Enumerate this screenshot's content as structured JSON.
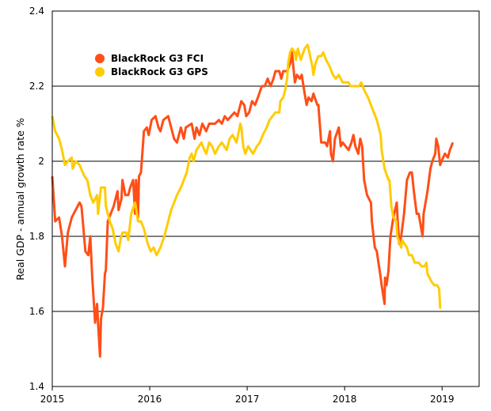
{
  "chart_data": {
    "type": "line",
    "title": "",
    "xlabel": "",
    "ylabel": "Real GDP - annual growth rate %",
    "xlim": [
      2015,
      2019.38
    ],
    "ylim": [
      1.4,
      2.4
    ],
    "x_ticks": [
      "2015",
      "2016",
      "2017",
      "2018",
      "2019"
    ],
    "y_ticks": [
      "1.4",
      "1.6",
      "1.8",
      "2",
      "2.2",
      "2.4"
    ],
    "grid": "horizontal",
    "legend_position": "top-left",
    "series": [
      {
        "name": "BlackRock G3 FCI",
        "color": "#FF4E17",
        "points": [
          [
            2015.0,
            1.96
          ],
          [
            2015.03,
            1.84
          ],
          [
            2015.07,
            1.85
          ],
          [
            2015.1,
            1.8
          ],
          [
            2015.13,
            1.72
          ],
          [
            2015.16,
            1.81
          ],
          [
            2015.2,
            1.85
          ],
          [
            2015.24,
            1.87
          ],
          [
            2015.28,
            1.89
          ],
          [
            2015.3,
            1.88
          ],
          [
            2015.32,
            1.82
          ],
          [
            2015.34,
            1.76
          ],
          [
            2015.37,
            1.75
          ],
          [
            2015.39,
            1.8
          ],
          [
            2015.41,
            1.69
          ],
          [
            2015.42,
            1.65
          ],
          [
            2015.44,
            1.57
          ],
          [
            2015.46,
            1.62
          ],
          [
            2015.47,
            1.57
          ],
          [
            2015.49,
            1.48
          ],
          [
            2015.5,
            1.58
          ],
          [
            2015.52,
            1.61
          ],
          [
            2015.54,
            1.7
          ],
          [
            2015.55,
            1.71
          ],
          [
            2015.57,
            1.84
          ],
          [
            2015.6,
            1.86
          ],
          [
            2015.63,
            1.88
          ],
          [
            2015.67,
            1.92
          ],
          [
            2015.68,
            1.87
          ],
          [
            2015.71,
            1.9
          ],
          [
            2015.72,
            1.95
          ],
          [
            2015.75,
            1.91
          ],
          [
            2015.78,
            1.91
          ],
          [
            2015.8,
            1.93
          ],
          [
            2015.83,
            1.95
          ],
          [
            2015.85,
            1.86
          ],
          [
            2015.86,
            1.95
          ],
          [
            2015.88,
            1.85
          ],
          [
            2015.89,
            1.96
          ],
          [
            2015.91,
            1.97
          ],
          [
            2015.93,
            2.04
          ],
          [
            2015.94,
            2.08
          ],
          [
            2015.97,
            2.09
          ],
          [
            2015.99,
            2.07
          ],
          [
            2016.02,
            2.11
          ],
          [
            2016.06,
            2.12
          ],
          [
            2016.09,
            2.09
          ],
          [
            2016.11,
            2.08
          ],
          [
            2016.14,
            2.11
          ],
          [
            2016.19,
            2.12
          ],
          [
            2016.22,
            2.09
          ],
          [
            2016.25,
            2.06
          ],
          [
            2016.28,
            2.05
          ],
          [
            2016.32,
            2.09
          ],
          [
            2016.35,
            2.06
          ],
          [
            2016.37,
            2.09
          ],
          [
            2016.43,
            2.1
          ],
          [
            2016.46,
            2.06
          ],
          [
            2016.48,
            2.09
          ],
          [
            2016.51,
            2.07
          ],
          [
            2016.54,
            2.1
          ],
          [
            2016.58,
            2.08
          ],
          [
            2016.61,
            2.1
          ],
          [
            2016.67,
            2.1
          ],
          [
            2016.71,
            2.11
          ],
          [
            2016.74,
            2.1
          ],
          [
            2016.77,
            2.12
          ],
          [
            2016.8,
            2.11
          ],
          [
            2016.87,
            2.13
          ],
          [
            2016.9,
            2.12
          ],
          [
            2016.94,
            2.16
          ],
          [
            2016.97,
            2.15
          ],
          [
            2016.99,
            2.12
          ],
          [
            2017.02,
            2.13
          ],
          [
            2017.05,
            2.16
          ],
          [
            2017.08,
            2.15
          ],
          [
            2017.11,
            2.17
          ],
          [
            2017.15,
            2.2
          ],
          [
            2017.18,
            2.2
          ],
          [
            2017.21,
            2.22
          ],
          [
            2017.24,
            2.2
          ],
          [
            2017.27,
            2.22
          ],
          [
            2017.29,
            2.24
          ],
          [
            2017.33,
            2.24
          ],
          [
            2017.35,
            2.22
          ],
          [
            2017.37,
            2.24
          ],
          [
            2017.41,
            2.24
          ],
          [
            2017.44,
            2.26
          ],
          [
            2017.46,
            2.29
          ],
          [
            2017.47,
            2.26
          ],
          [
            2017.49,
            2.21
          ],
          [
            2017.51,
            2.23
          ],
          [
            2017.54,
            2.22
          ],
          [
            2017.56,
            2.23
          ],
          [
            2017.59,
            2.18
          ],
          [
            2017.61,
            2.15
          ],
          [
            2017.63,
            2.17
          ],
          [
            2017.66,
            2.16
          ],
          [
            2017.68,
            2.18
          ],
          [
            2017.72,
            2.15
          ],
          [
            2017.73,
            2.15
          ],
          [
            2017.76,
            2.05
          ],
          [
            2017.8,
            2.05
          ],
          [
            2017.82,
            2.04
          ],
          [
            2017.85,
            2.08
          ],
          [
            2017.86,
            2.02
          ],
          [
            2017.88,
            2.0
          ],
          [
            2017.9,
            2.06
          ],
          [
            2017.94,
            2.09
          ],
          [
            2017.96,
            2.04
          ],
          [
            2017.98,
            2.05
          ],
          [
            2018.01,
            2.04
          ],
          [
            2018.04,
            2.03
          ],
          [
            2018.07,
            2.05
          ],
          [
            2018.09,
            2.07
          ],
          [
            2018.11,
            2.04
          ],
          [
            2018.14,
            2.02
          ],
          [
            2018.16,
            2.06
          ],
          [
            2018.18,
            2.04
          ],
          [
            2018.2,
            1.95
          ],
          [
            2018.23,
            1.91
          ],
          [
            2018.27,
            1.89
          ],
          [
            2018.28,
            1.84
          ],
          [
            2018.31,
            1.77
          ],
          [
            2018.33,
            1.76
          ],
          [
            2018.37,
            1.69
          ],
          [
            2018.38,
            1.67
          ],
          [
            2018.41,
            1.62
          ],
          [
            2018.415,
            1.69
          ],
          [
            2018.43,
            1.67
          ],
          [
            2018.45,
            1.71
          ],
          [
            2018.47,
            1.8
          ],
          [
            2018.5,
            1.85
          ],
          [
            2018.535,
            1.89
          ],
          [
            2018.545,
            1.84
          ],
          [
            2018.56,
            1.78
          ],
          [
            2018.58,
            1.8
          ],
          [
            2018.61,
            1.86
          ],
          [
            2018.64,
            1.95
          ],
          [
            2018.67,
            1.97
          ],
          [
            2018.69,
            1.97
          ],
          [
            2018.71,
            1.92
          ],
          [
            2018.74,
            1.86
          ],
          [
            2018.76,
            1.86
          ],
          [
            2018.8,
            1.8
          ],
          [
            2018.81,
            1.86
          ],
          [
            2018.85,
            1.92
          ],
          [
            2018.88,
            1.98
          ],
          [
            2018.9,
            2.0
          ],
          [
            2018.93,
            2.02
          ],
          [
            2018.94,
            2.06
          ],
          [
            2018.96,
            2.04
          ],
          [
            2018.98,
            1.99
          ],
          [
            2019.01,
            2.01
          ],
          [
            2019.03,
            2.02
          ],
          [
            2019.06,
            2.01
          ],
          [
            2019.08,
            2.03
          ],
          [
            2019.11,
            2.05
          ]
        ]
      },
      {
        "name": "BlackRock G3 GPS",
        "color": "#FFCC00",
        "points": [
          [
            2015.0,
            2.12
          ],
          [
            2015.03,
            2.08
          ],
          [
            2015.07,
            2.06
          ],
          [
            2015.1,
            2.03
          ],
          [
            2015.13,
            1.99
          ],
          [
            2015.16,
            2.0
          ],
          [
            2015.2,
            2.01
          ],
          [
            2015.21,
            1.98
          ],
          [
            2015.24,
            2.0
          ],
          [
            2015.28,
            1.99
          ],
          [
            2015.33,
            1.96
          ],
          [
            2015.36,
            1.95
          ],
          [
            2015.39,
            1.91
          ],
          [
            2015.42,
            1.89
          ],
          [
            2015.46,
            1.91
          ],
          [
            2015.47,
            1.86
          ],
          [
            2015.5,
            1.93
          ],
          [
            2015.54,
            1.93
          ],
          [
            2015.55,
            1.88
          ],
          [
            2015.59,
            1.84
          ],
          [
            2015.62,
            1.82
          ],
          [
            2015.65,
            1.78
          ],
          [
            2015.68,
            1.76
          ],
          [
            2015.7,
            1.79
          ],
          [
            2015.72,
            1.81
          ],
          [
            2015.76,
            1.81
          ],
          [
            2015.78,
            1.79
          ],
          [
            2015.81,
            1.86
          ],
          [
            2015.85,
            1.89
          ],
          [
            2015.88,
            1.84
          ],
          [
            2015.91,
            1.84
          ],
          [
            2015.94,
            1.82
          ],
          [
            2015.98,
            1.78
          ],
          [
            2016.01,
            1.76
          ],
          [
            2016.04,
            1.77
          ],
          [
            2016.07,
            1.75
          ],
          [
            2016.11,
            1.77
          ],
          [
            2016.15,
            1.8
          ],
          [
            2016.19,
            1.84
          ],
          [
            2016.22,
            1.87
          ],
          [
            2016.25,
            1.89
          ],
          [
            2016.28,
            1.91
          ],
          [
            2016.32,
            1.93
          ],
          [
            2016.35,
            1.95
          ],
          [
            2016.38,
            1.97
          ],
          [
            2016.41,
            2.01
          ],
          [
            2016.43,
            2.02
          ],
          [
            2016.45,
            2.0
          ],
          [
            2016.48,
            2.03
          ],
          [
            2016.53,
            2.05
          ],
          [
            2016.56,
            2.03
          ],
          [
            2016.58,
            2.02
          ],
          [
            2016.61,
            2.05
          ],
          [
            2016.64,
            2.04
          ],
          [
            2016.67,
            2.02
          ],
          [
            2016.71,
            2.04
          ],
          [
            2016.74,
            2.05
          ],
          [
            2016.79,
            2.03
          ],
          [
            2016.82,
            2.06
          ],
          [
            2016.85,
            2.07
          ],
          [
            2016.89,
            2.05
          ],
          [
            2016.93,
            2.1
          ],
          [
            2016.94,
            2.09
          ],
          [
            2016.96,
            2.04
          ],
          [
            2016.98,
            2.02
          ],
          [
            2017.01,
            2.04
          ],
          [
            2017.06,
            2.02
          ],
          [
            2017.1,
            2.04
          ],
          [
            2017.13,
            2.05
          ],
          [
            2017.16,
            2.07
          ],
          [
            2017.2,
            2.09
          ],
          [
            2017.23,
            2.11
          ],
          [
            2017.26,
            2.12
          ],
          [
            2017.29,
            2.13
          ],
          [
            2017.33,
            2.13
          ],
          [
            2017.34,
            2.16
          ],
          [
            2017.37,
            2.17
          ],
          [
            2017.39,
            2.19
          ],
          [
            2017.41,
            2.22
          ],
          [
            2017.42,
            2.26
          ],
          [
            2017.44,
            2.29
          ],
          [
            2017.46,
            2.3
          ],
          [
            2017.49,
            2.29
          ],
          [
            2017.5,
            2.27
          ],
          [
            2017.52,
            2.3
          ],
          [
            2017.55,
            2.27
          ],
          [
            2017.59,
            2.3
          ],
          [
            2017.62,
            2.31
          ],
          [
            2017.63,
            2.3
          ],
          [
            2017.67,
            2.25
          ],
          [
            2017.68,
            2.23
          ],
          [
            2017.7,
            2.26
          ],
          [
            2017.73,
            2.28
          ],
          [
            2017.76,
            2.28
          ],
          [
            2017.78,
            2.29
          ],
          [
            2017.81,
            2.27
          ],
          [
            2017.85,
            2.25
          ],
          [
            2017.88,
            2.23
          ],
          [
            2017.91,
            2.22
          ],
          [
            2017.94,
            2.23
          ],
          [
            2017.98,
            2.21
          ],
          [
            2018.01,
            2.21
          ],
          [
            2018.04,
            2.21
          ],
          [
            2018.06,
            2.2
          ],
          [
            2018.09,
            2.2
          ],
          [
            2018.12,
            2.2
          ],
          [
            2018.15,
            2.2
          ],
          [
            2018.17,
            2.21
          ],
          [
            2018.2,
            2.19
          ],
          [
            2018.24,
            2.17
          ],
          [
            2018.27,
            2.15
          ],
          [
            2018.3,
            2.13
          ],
          [
            2018.33,
            2.11
          ],
          [
            2018.35,
            2.09
          ],
          [
            2018.37,
            2.07
          ],
          [
            2018.38,
            2.03
          ],
          [
            2018.41,
            1.98
          ],
          [
            2018.45,
            1.95
          ],
          [
            2018.46,
            1.95
          ],
          [
            2018.48,
            1.88
          ],
          [
            2018.5,
            1.85
          ],
          [
            2018.53,
            1.84
          ],
          [
            2018.54,
            1.8
          ],
          [
            2018.58,
            1.77
          ],
          [
            2018.59,
            1.79
          ],
          [
            2018.64,
            1.77
          ],
          [
            2018.66,
            1.75
          ],
          [
            2018.69,
            1.75
          ],
          [
            2018.72,
            1.73
          ],
          [
            2018.76,
            1.73
          ],
          [
            2018.79,
            1.72
          ],
          [
            2018.82,
            1.72
          ],
          [
            2018.84,
            1.73
          ],
          [
            2018.85,
            1.7
          ],
          [
            2018.89,
            1.68
          ],
          [
            2018.92,
            1.67
          ],
          [
            2018.95,
            1.67
          ],
          [
            2018.97,
            1.66
          ],
          [
            2018.98,
            1.61
          ],
          [
            2018.99,
            1.61
          ]
        ]
      }
    ]
  }
}
